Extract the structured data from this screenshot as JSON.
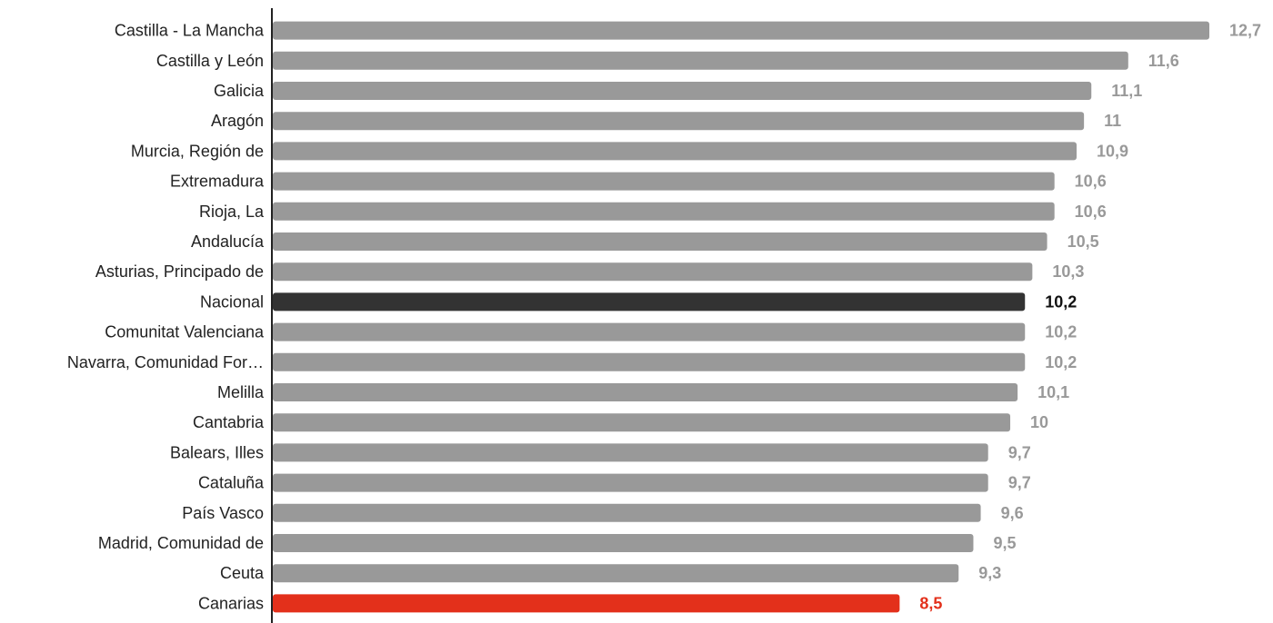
{
  "chart_data": {
    "type": "bar",
    "orientation": "horizontal",
    "categories": [
      "Castilla - La Mancha",
      "Castilla y León",
      "Galicia",
      "Aragón",
      "Murcia, Región de",
      "Extremadura",
      "Rioja, La",
      "Andalucía",
      "Asturias, Principado de",
      "Nacional",
      "Comunitat Valenciana",
      "Navarra, Comunidad For…",
      "Melilla",
      "Cantabria",
      "Balears, Illes",
      "Cataluña",
      "País Vasco",
      "Madrid, Comunidad de",
      "Ceuta",
      "Canarias"
    ],
    "values": [
      12.7,
      11.6,
      11.1,
      11,
      10.9,
      10.6,
      10.6,
      10.5,
      10.3,
      10.2,
      10.2,
      10.2,
      10.1,
      10,
      9.7,
      9.7,
      9.6,
      9.5,
      9.3,
      8.5
    ],
    "value_labels": [
      "12,7",
      "11,6",
      "11,1",
      "11",
      "10,9",
      "10,6",
      "10,6",
      "10,5",
      "10,3",
      "10,2",
      "10,2",
      "10,2",
      "10,1",
      "10",
      "9,7",
      "9,7",
      "9,6",
      "9,5",
      "9,3",
      "8,5"
    ],
    "bar_colors": [
      "#999999",
      "#999999",
      "#999999",
      "#999999",
      "#999999",
      "#999999",
      "#999999",
      "#999999",
      "#999999",
      "#333333",
      "#999999",
      "#999999",
      "#999999",
      "#999999",
      "#999999",
      "#999999",
      "#999999",
      "#999999",
      "#999999",
      "#e3301b"
    ],
    "label_colors": [
      "#999999",
      "#999999",
      "#999999",
      "#999999",
      "#999999",
      "#999999",
      "#999999",
      "#999999",
      "#999999",
      "#111111",
      "#999999",
      "#999999",
      "#999999",
      "#999999",
      "#999999",
      "#999999",
      "#999999",
      "#999999",
      "#999999",
      "#e3301b"
    ],
    "xlim": [
      0,
      12.7
    ],
    "axis_color": "#222222",
    "grid": false,
    "legend": "none",
    "title": "",
    "xlabel": "",
    "ylabel": ""
  }
}
